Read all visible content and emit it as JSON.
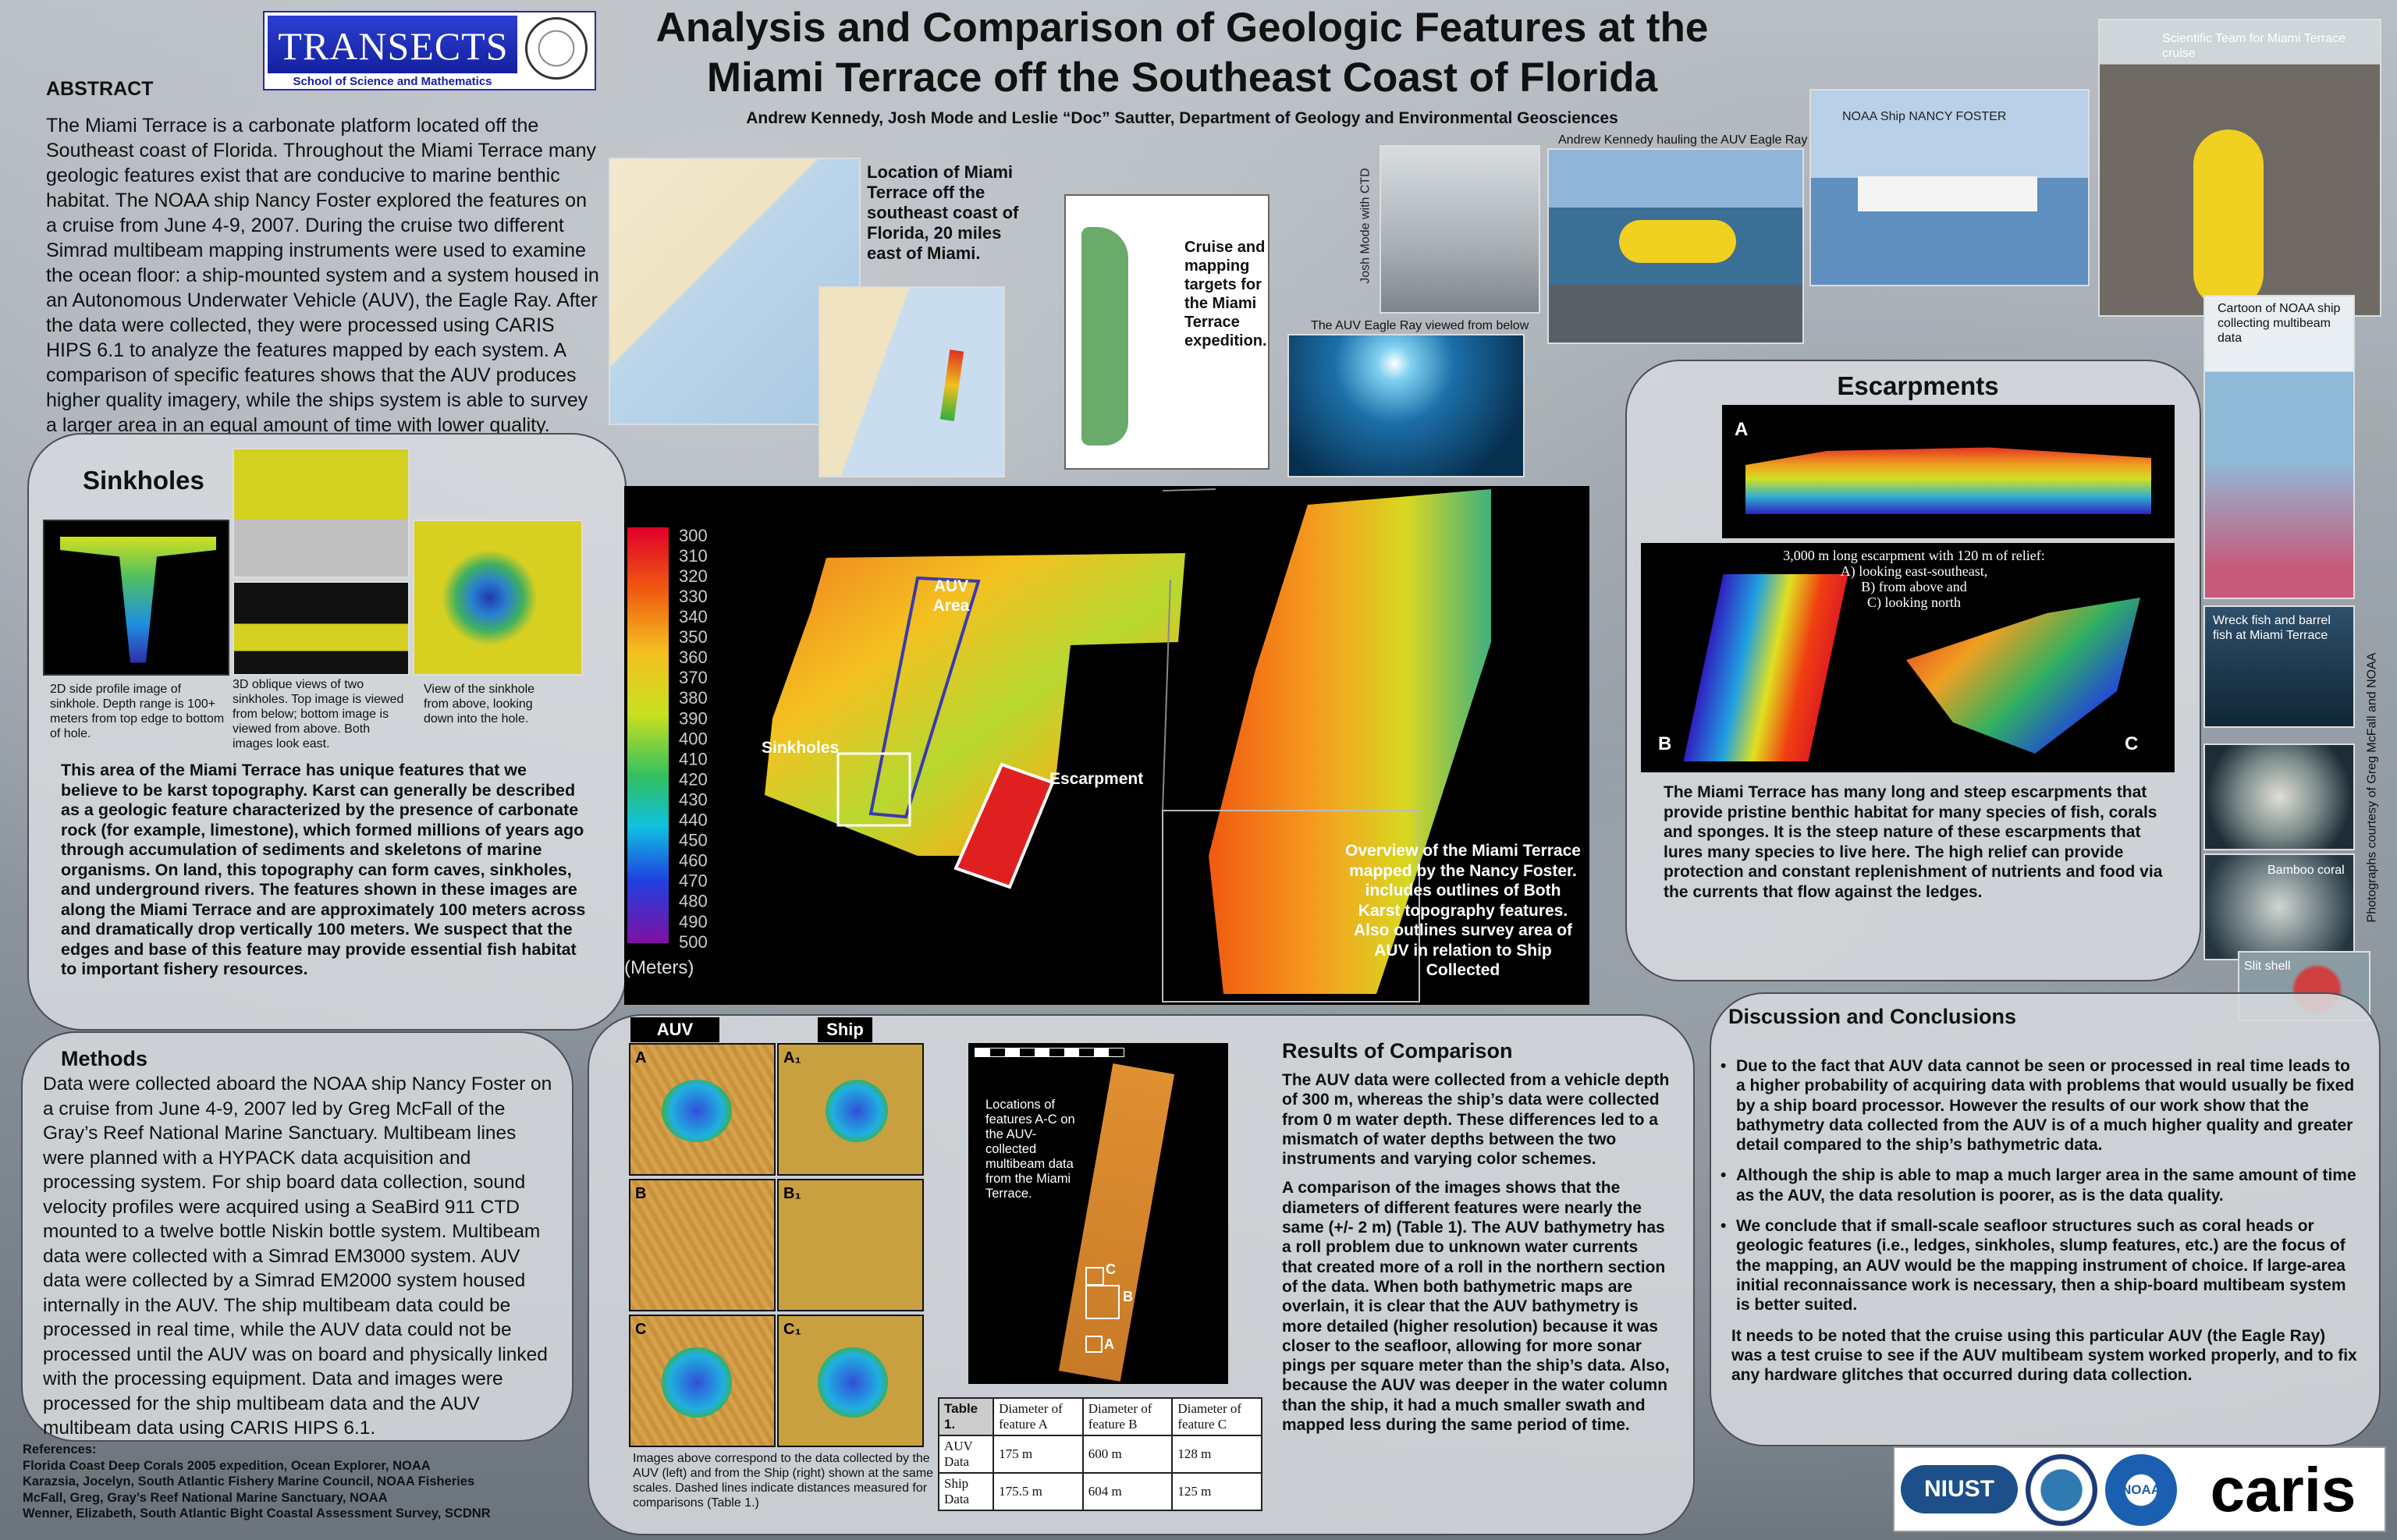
{
  "header": {
    "logo": "TRANSECTS",
    "logo_sub": "School of Science and Mathematics",
    "title_line1": "Analysis and Comparison of Geologic Features at the",
    "title_line2": "Miami Terrace off the Southeast Coast of Florida",
    "authors": "Andrew Kennedy, Josh Mode and Leslie “Doc” Sautter, Department of Geology and Environmental Geosciences"
  },
  "abstract": {
    "heading": "ABSTRACT",
    "text": "The Miami Terrace is a carbonate platform located off the Southeast coast of Florida. Throughout the Miami Terrace many geologic features exist that are conducive to marine benthic habitat. The NOAA ship Nancy Foster explored the features on a cruise from June 4-9, 2007. During the cruise two different Simrad multibeam mapping instruments were used to examine the ocean floor: a ship-mounted system and a system housed in an Autonomous Underwater Vehicle (AUV), the Eagle Ray. After the data were collected, they were processed using CARIS HIPS 6.1 to analyze the features mapped by each system. A comparison of specific features shows that the AUV produces higher quality imagery, while the ships system is able to survey a larger area in an equal amount of time with lower quality."
  },
  "location_caption": "Location of Miami Terrace off the southeast coast of Florida, 20 miles east of Miami.",
  "cruise_caption": "Cruise and mapping targets for the Miami Terrace expedition.",
  "photos": {
    "ctd": "Josh Mode with CTD",
    "hauling": "Andrew Kennedy hauling the AUV Eagle Ray",
    "ship": "NOAA Ship NANCY FOSTER",
    "team": "Scientific Team for Miami Terrace cruise",
    "below": "The AUV Eagle Ray viewed from below",
    "cartoon": "Cartoon of NOAA ship collecting multibeam data",
    "wreck": "Wreck fish and barrel fish at Miami Terrace",
    "bamboo": "Bamboo coral",
    "slit": "Slit shell",
    "credit": "Photographs  courtesy of Greg McFall and NOAA"
  },
  "sinkholes": {
    "heading": "Sinkholes",
    "captions": [
      "2D side profile image of sinkhole. Depth range is 100+ meters from top edge to bottom of hole.",
      "3D oblique views of two sinkholes. Top image is viewed from below; bottom image is viewed from above. Both images look east.",
      "View of the sinkhole from above, looking down into the hole."
    ],
    "text": "This area of the Miami Terrace has unique features that we believe to be karst topography.  Karst can generally be described as a geologic feature characterized by the presence of carbonate rock (for example, limestone), which formed millions of years ago through accumulation of sediments and skeletons of marine organisms.  On land, this topography can form caves, sinkholes, and underground rivers. The features shown in these images are along the Miami Terrace and are approximately 100 meters across and dramatically drop vertically 100 meters.  We suspect that the edges and base of this feature may provide essential fish habitat to important fishery resources."
  },
  "map": {
    "scale": [
      300,
      310,
      320,
      330,
      340,
      350,
      360,
      370,
      380,
      390,
      400,
      410,
      420,
      430,
      440,
      450,
      460,
      470,
      480,
      490,
      500
    ],
    "unit": "(Meters)",
    "auv_label": "AUV Area",
    "sinkholes_label": "Sinkholes",
    "escarpment_label": "Escarpment",
    "overview": "Overview of the Miami Terrace mapped by the Nancy Foster. includes outlines of Both Karst topography features. Also outlines survey area of AUV in relation to Ship Collected"
  },
  "methods": {
    "heading": "Methods",
    "text": "Data were collected aboard the NOAA ship Nancy Foster on a cruise from June 4-9, 2007 led by Greg McFall of the Gray’s Reef National Marine Sanctuary. Multibeam lines were planned with a HYPACK data acquisition and processing system. For ship board data collection, sound velocity profiles were acquired using a SeaBird 911 CTD mounted to a twelve bottle Niskin bottle system. Multibeam data were collected with a Simrad EM3000 system.  AUV data were collected  by a Simrad EM2000 system housed internally in the AUV. The ship multibeam data could be processed in real time, while the AUV data could not be processed until the AUV was on board and physically linked with the processing equipment.  Data and images were processed for the ship multibeam data and the AUV multibeam data using CARIS HIPS 6.1."
  },
  "references": {
    "heading": "References:",
    "items": [
      "Florida Coast Deep Corals 2005 expedition,  Ocean Explorer, NOAA",
      "Karazsia, Jocelyn, South Atlantic Fishery Marine Council, NOAA Fisheries",
      "McFall, Greg, Gray’s Reef National Marine Sanctuary, NOAA",
      "Wenner, Elizabeth, South Atlantic Bight Coastal Assessment Survey, SCDNR"
    ]
  },
  "comparison": {
    "auv": "AUV",
    "ship": "Ship",
    "panels": [
      "A",
      "A₁",
      "B",
      "B₁",
      "C",
      "C₁"
    ],
    "caption": "Images above correspond to the data collected by the AUV (left) and from the Ship (right) shown at the same scales. Dashed lines indicate distances measured for comparisons (Table 1.)",
    "strip_caption": "Locations of features A-C on the AUV-collected multibeam data from the Miami Terrace.",
    "strip_labels": [
      "C",
      "B",
      "A"
    ]
  },
  "table": {
    "title": "Table 1.",
    "headers": [
      "Diameter of feature A",
      "Diameter of feature B",
      "Diameter of feature C"
    ],
    "rows": [
      [
        "AUV Data",
        "175 m",
        "600 m",
        "128 m"
      ],
      [
        "Ship Data",
        "175.5 m",
        "604 m",
        "125 m"
      ]
    ]
  },
  "results": {
    "heading": "Results of Comparison",
    "paragraphs": [
      "The AUV data were collected from a vehicle depth of 300 m, whereas the ship’s data were collected from 0 m water depth.  These differences led to a mismatch of water depths between the two instruments and varying color schemes.",
      "A comparison of the images shows that the diameters of different features were nearly the same (+/- 2 m) (Table 1).   The AUV bathymetry has a roll problem due to unknown water currents that created more of a roll in the northern section of the data.  When both bathymetric maps are overlain, it is clear that the AUV bathymetry is more detailed (higher resolution) because it was closer to the seafloor, allowing for more sonar pings per square meter than the ship’s data.  Also, because the AUV was deeper in the water column than the ship, it had a much smaller swath and mapped less during the same period of time."
    ]
  },
  "escarpments": {
    "heading": "Escarpments",
    "panels": [
      "A",
      "B",
      "C"
    ],
    "caption": [
      "3,000 m long escarpment with 120 m of relief:",
      "A) looking east-southeast,",
      "B) from above and",
      "C) looking north"
    ],
    "text": "The Miami Terrace has many  long and steep escarpments that provide pristine benthic  habitat for many species of fish, corals and sponges.  It is the steep nature of these escarpments that lures many species to live here. The high relief can provide protection and constant replenishment of nutrients and food via the currents that flow against the  ledges."
  },
  "discussion": {
    "heading": "Discussion and Conclusions",
    "bullets": [
      "Due to the fact that AUV data cannot be seen or processed in real time leads to a higher probability of acquiring data with problems that would usually be fixed by a ship board processor.  However the results of our work show that the bathymetry data collected from the AUV is of a much higher quality and greater detail compared to the ship’s bathymetric data.",
      "Although the ship is able to map a much larger area in the same amount of time as the AUV, the data resolution is poorer, as is the data quality.",
      "We conclude that if small-scale seafloor structures such as coral heads or geologic features (i.e., ledges, sinkholes, slump features, etc.) are the focus of the mapping, an AUV would be the mapping instrument of choice. If large-area initial reconnaissance work is necessary, then a ship-board multibeam system is better suited."
    ],
    "note": "It needs to be noted that the cruise using this particular AUV (the Eagle Ray) was a test cruise to see if the AUV multibeam system worked properly, and to fix any hardware glitches that occurred during data collection."
  },
  "logos": {
    "niust": "NIUST",
    "noaa": "NOAA",
    "caris": "caris"
  }
}
